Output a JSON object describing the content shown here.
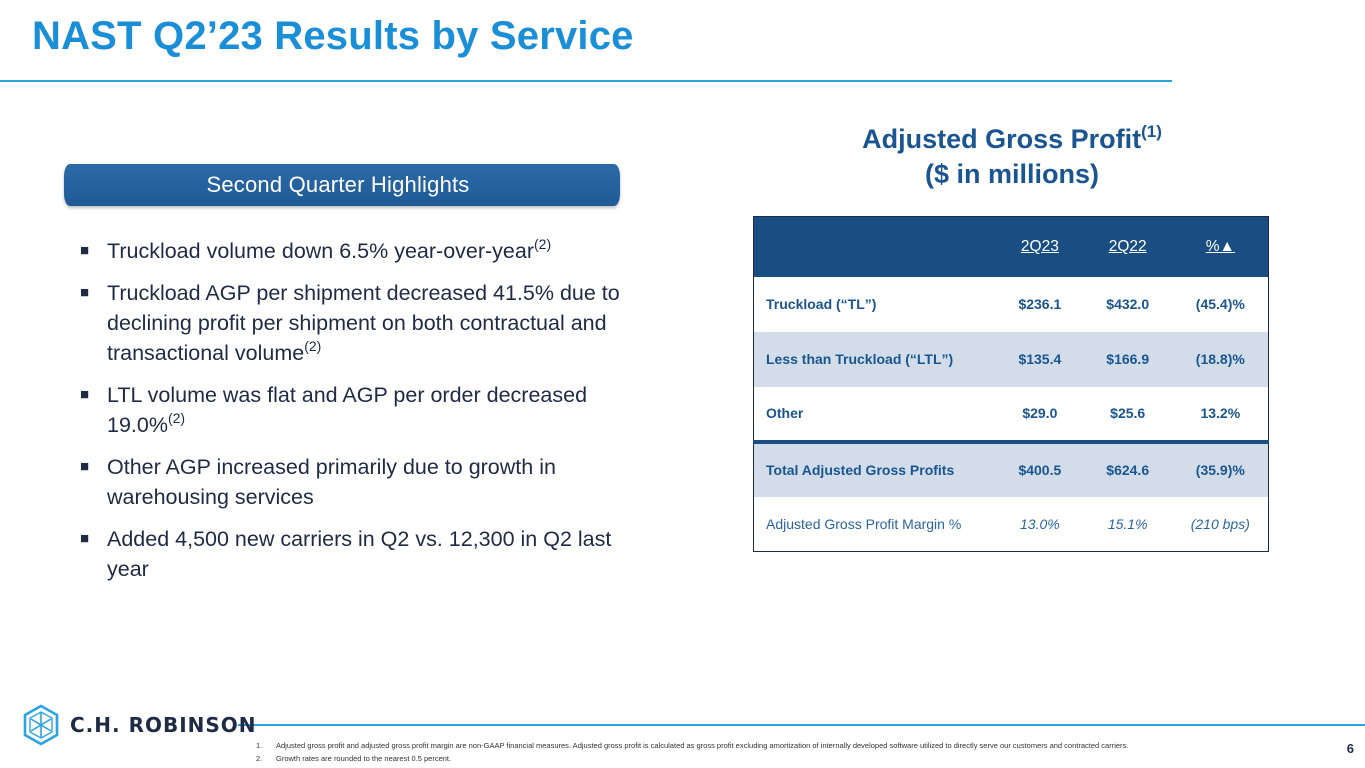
{
  "title": "NAST Q2’23 Results by Service",
  "highlights": {
    "banner": "Second Quarter Highlights",
    "marker": "■",
    "bullets": [
      {
        "text": "Truckload volume down 6.5% year-over-year",
        "note": "(2)"
      },
      {
        "text": "Truckload AGP per shipment decreased 41.5% due to declining profit per shipment on both contractual and transactional volume",
        "note": "(2)"
      },
      {
        "text": "LTL volume was flat and AGP per order decreased 19.0%",
        "note": "(2)"
      },
      {
        "text": "Other AGP increased primarily due to growth in warehousing services",
        "note": ""
      },
      {
        "text": "Added 4,500 new carriers in Q2 vs. 12,300 in Q2 last year",
        "note": ""
      }
    ]
  },
  "table": {
    "heading_line1": "Adjusted Gross Profit",
    "heading_note": "(1)",
    "heading_line2": "($ in millions)",
    "columns": [
      "",
      "2Q23",
      "2Q22",
      "%▲"
    ],
    "rows": [
      {
        "label": "Truckload (“TL”)",
        "2Q23": "$236.1",
        "2Q22": "$432.0",
        "change": "(45.4)%"
      },
      {
        "label": "Less than Truckload (“LTL”)",
        "2Q23": "$135.4",
        "2Q22": "$166.9",
        "change": "(18.8)%"
      },
      {
        "label": "Other",
        "2Q23": "$29.0",
        "2Q22": "$25.6",
        "change": "13.2%"
      },
      {
        "label": "Total Adjusted Gross Profits",
        "2Q23": "$400.5",
        "2Q22": "$624.6",
        "change": "(35.9)%"
      },
      {
        "label": "Adjusted Gross Profit Margin %",
        "2Q23": "13.0%",
        "2Q22": "15.1%",
        "change": "(210 bps)"
      }
    ]
  },
  "footer": {
    "logo_text": "C.H. ROBINSON",
    "footnotes": [
      {
        "num": "1.",
        "text": "Adjusted gross profit and adjusted gross profit margin are non-GAAP financial measures. Adjusted gross profit is calculated as gross profit excluding amortization of internally developed software utilized to directly serve our customers and contracted carriers."
      },
      {
        "num": "2.",
        "text": "Growth rates are rounded to the nearest 0.5 percent."
      }
    ],
    "page_number": "6"
  },
  "colors": {
    "title_blue": "#1a8fd8",
    "navy": "#1a4d82",
    "row_shade": "#d2dde9",
    "text_dark": "#1f2a44"
  }
}
